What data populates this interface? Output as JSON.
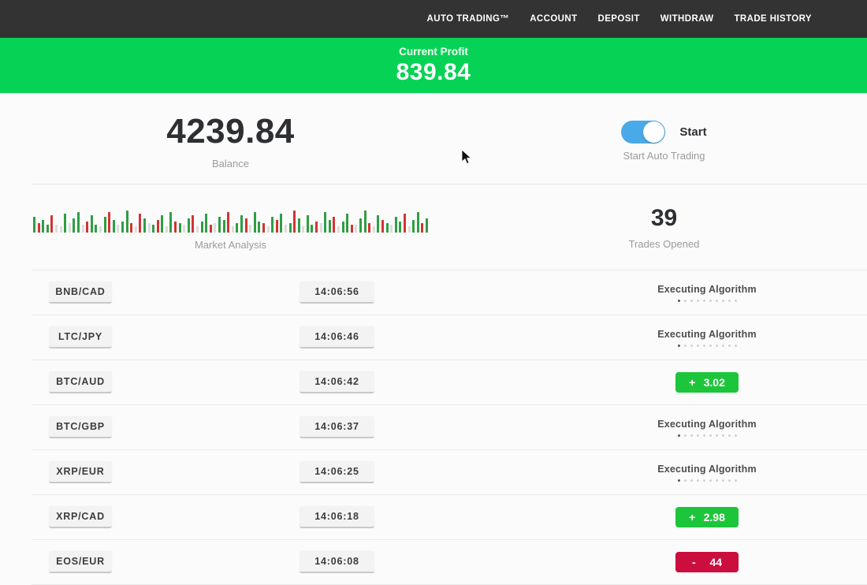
{
  "nav": {
    "items": [
      {
        "label": "AUTO TRADING™"
      },
      {
        "label": "ACCOUNT"
      },
      {
        "label": "DEPOSIT"
      },
      {
        "label": "WITHDRAW"
      },
      {
        "label": "TRADE HISTORY"
      }
    ]
  },
  "banner": {
    "label": "Current Profit",
    "value": "839.84"
  },
  "summary": {
    "balance": {
      "value": "4239.84",
      "label": "Balance"
    },
    "auto_trading": {
      "toggle_label": "Start",
      "label": "Start Auto Trading",
      "enabled": true
    },
    "market": {
      "label": "Market Analysis",
      "bars": [
        "g20",
        "r12",
        "g16",
        "g10",
        "r22",
        "e10",
        "e8",
        "g24",
        "e12",
        "g18",
        "g26",
        "e10",
        "r14",
        "g22",
        "g10",
        "e8",
        "g20",
        "r26",
        "g16",
        "e10",
        "g14",
        "g28",
        "r12",
        "e8",
        "r24",
        "g18",
        "e12",
        "g10",
        "r16",
        "g22",
        "e8",
        "g26",
        "r14",
        "g12",
        "e10",
        "g18",
        "r22",
        "e8",
        "g14",
        "g24",
        "r10",
        "e12",
        "g20",
        "g16",
        "r26",
        "e8",
        "g12",
        "g22",
        "r18",
        "e10",
        "g26",
        "g14",
        "r12",
        "e8",
        "g20",
        "r16",
        "g24",
        "e10",
        "g12",
        "r28",
        "g18",
        "e8",
        "g22",
        "g10",
        "r14",
        "e12",
        "g26",
        "g16",
        "r20",
        "e8",
        "g14",
        "g24",
        "r10",
        "e10",
        "g18",
        "g28",
        "r12",
        "e8",
        "g22",
        "r16",
        "g12",
        "e10",
        "g20",
        "g14",
        "r24",
        "e8",
        "g16",
        "g26",
        "r12",
        "g18"
      ]
    },
    "trades": {
      "value": "39",
      "label": "Trades Opened"
    }
  },
  "trades_list": {
    "executing_label": "Executing Algorithm",
    "rows": [
      {
        "pair": "BNB/CAD",
        "time": "14:06:56",
        "status": {
          "type": "executing"
        }
      },
      {
        "pair": "LTC/JPY",
        "time": "14:06:46",
        "status": {
          "type": "executing"
        }
      },
      {
        "pair": "BTC/AUD",
        "time": "14:06:42",
        "status": {
          "type": "result",
          "sign": "+",
          "value": "3.02",
          "color": "green"
        }
      },
      {
        "pair": "BTC/GBP",
        "time": "14:06:37",
        "status": {
          "type": "executing"
        }
      },
      {
        "pair": "XRP/EUR",
        "time": "14:06:25",
        "status": {
          "type": "executing"
        }
      },
      {
        "pair": "XRP/CAD",
        "time": "14:06:18",
        "status": {
          "type": "result",
          "sign": "+",
          "value": "2.98",
          "color": "green"
        }
      },
      {
        "pair": "EOS/EUR",
        "time": "14:06:08",
        "status": {
          "type": "result",
          "sign": "-",
          "value": "44",
          "color": "red"
        }
      }
    ]
  },
  "colors": {
    "nav_bg": "#333333",
    "banner_green": "#06d355",
    "toggle_blue": "#4aa9e8",
    "profit_green": "#1dc53a",
    "loss_red": "#cb0e3d",
    "bar_green": "#2f9e44",
    "bar_red": "#d23434",
    "bar_pale": "#dcdcdc"
  }
}
